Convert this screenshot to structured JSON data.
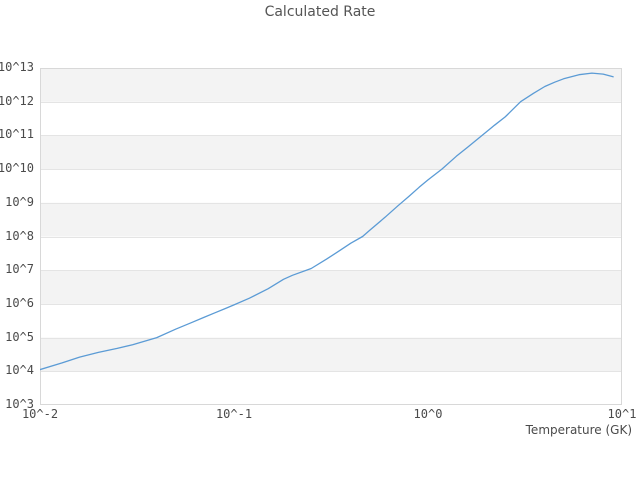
{
  "chart_data": {
    "type": "line",
    "title": "Calculated Rate",
    "xlabel": "Temperature (GK)",
    "ylabel": "",
    "x_scale": "log10",
    "y_scale": "log10",
    "xlim_log10": [
      -2,
      1
    ],
    "ylim_log10": [
      3,
      13
    ],
    "grid": "horizontal-decade-bands",
    "legend": "none",
    "x_ticks": [
      {
        "label": "10^-2",
        "log10": -2
      },
      {
        "label": "10^-1",
        "log10": -1
      },
      {
        "label": "10^0",
        "log10": 0
      },
      {
        "label": "10^1",
        "log10": 1
      }
    ],
    "y_ticks": [
      {
        "label": "10^13",
        "log10": 13
      },
      {
        "label": "10^12",
        "log10": 12
      },
      {
        "label": "10^11",
        "log10": 11
      },
      {
        "label": "10^10",
        "log10": 10
      },
      {
        "label": "10^9",
        "log10": 9
      },
      {
        "label": "10^8",
        "log10": 8
      },
      {
        "label": "10^7",
        "log10": 7
      },
      {
        "label": "10^6",
        "log10": 6
      },
      {
        "label": "10^5",
        "log10": 5
      },
      {
        "label": "10^4",
        "log10": 4
      },
      {
        "label": "10^3",
        "log10": 3
      }
    ],
    "colors": {
      "line": "#5b9bd5",
      "band": "#f3f3f3",
      "gridline": "#e4e4e4",
      "border": "#d8d8d8",
      "tick_text": "#4a4a4a",
      "title_text": "#555555"
    },
    "series": [
      {
        "name": "calculated-rate",
        "x_gk": [
          0.01,
          0.013,
          0.016,
          0.02,
          0.025,
          0.03,
          0.04,
          0.05,
          0.06,
          0.07,
          0.08,
          0.09,
          0.1,
          0.12,
          0.15,
          0.18,
          0.2,
          0.25,
          0.3,
          0.35,
          0.4,
          0.46,
          0.5,
          0.6,
          0.7,
          0.8,
          0.9,
          1.0,
          1.18,
          1.4,
          1.6,
          1.9,
          2.2,
          2.5,
          3.0,
          3.5,
          4.0,
          4.5,
          5.0,
          6.0,
          7.0,
          8.0,
          9.0
        ],
        "log10_rate": [
          4.05,
          4.25,
          4.42,
          4.56,
          4.68,
          4.79,
          5.0,
          5.25,
          5.44,
          5.6,
          5.74,
          5.86,
          5.97,
          6.17,
          6.45,
          6.73,
          6.85,
          7.05,
          7.33,
          7.58,
          7.8,
          8.0,
          8.18,
          8.57,
          8.91,
          9.2,
          9.46,
          9.68,
          10.0,
          10.38,
          10.65,
          11.0,
          11.3,
          11.55,
          12.0,
          12.25,
          12.45,
          12.58,
          12.68,
          12.8,
          12.85,
          12.82,
          12.74
        ]
      }
    ]
  }
}
